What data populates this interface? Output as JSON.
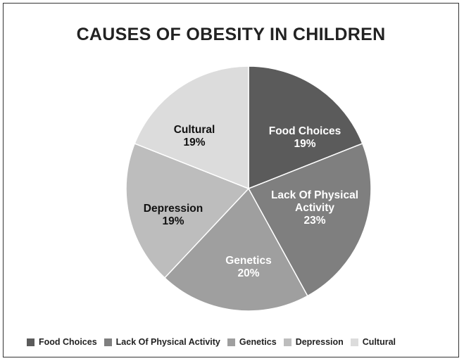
{
  "chart_data": {
    "type": "pie",
    "title": "CAUSES OF OBESITY IN CHILDREN",
    "slices": [
      {
        "name": "Food Choices",
        "label_lines": [
          "Food Choices"
        ],
        "value": 19,
        "value_label": "19%",
        "color": "#5b5b5b",
        "label_color": "#ffffff"
      },
      {
        "name": "Lack Of Physical Activity",
        "label_lines": [
          "Lack Of Physical",
          "Activity"
        ],
        "value": 23,
        "value_label": "23%",
        "color": "#7f7f7f",
        "label_color": "#ffffff"
      },
      {
        "name": "Genetics",
        "label_lines": [
          "Genetics"
        ],
        "value": 20,
        "value_label": "20%",
        "color": "#9f9f9f",
        "label_color": "#ffffff"
      },
      {
        "name": "Depression",
        "label_lines": [
          "Depression"
        ],
        "value": 19,
        "value_label": "19%",
        "color": "#bdbdbd",
        "label_color": "#111111"
      },
      {
        "name": "Cultural",
        "label_lines": [
          "Cultural"
        ],
        "value": 19,
        "value_label": "19%",
        "color": "#dcdcdc",
        "label_color": "#111111"
      }
    ],
    "legend_position": "bottom"
  }
}
